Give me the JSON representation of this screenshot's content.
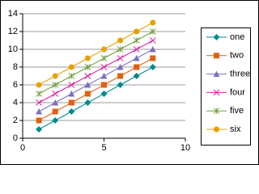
{
  "chart_data": {
    "type": "line",
    "x": [
      1,
      2,
      3,
      4,
      5,
      6,
      7,
      8
    ],
    "series": [
      {
        "name": "one",
        "color": "#008b8b",
        "marker": "diamond",
        "values": [
          1,
          2,
          3,
          4,
          5,
          6,
          7,
          8
        ]
      },
      {
        "name": "two",
        "color": "#e06010",
        "marker": "square",
        "values": [
          2,
          3,
          4,
          5,
          6,
          7,
          8,
          9
        ]
      },
      {
        "name": "three",
        "color": "#7a70c0",
        "marker": "triangle",
        "values": [
          3,
          4,
          5,
          6,
          7,
          8,
          9,
          10
        ]
      },
      {
        "name": "four",
        "color": "#e020a0",
        "marker": "x",
        "values": [
          4,
          5,
          6,
          7,
          8,
          9,
          10,
          11
        ]
      },
      {
        "name": "five",
        "color": "#70a040",
        "marker": "star",
        "values": [
          5,
          6,
          7,
          8,
          9,
          10,
          11,
          12
        ]
      },
      {
        "name": "six",
        "color": "#e8a000",
        "marker": "circle",
        "values": [
          6,
          7,
          8,
          9,
          10,
          11,
          12,
          13
        ]
      }
    ],
    "xlim": [
      0,
      10
    ],
    "xticks": [
      0,
      5,
      10
    ],
    "ylim": [
      0,
      14
    ],
    "yticks": [
      0,
      2,
      4,
      6,
      8,
      10,
      12,
      14
    ],
    "grid": true,
    "legend": "right"
  }
}
